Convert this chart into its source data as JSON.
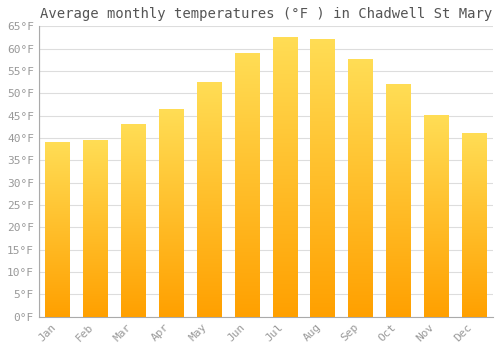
{
  "title": "Average monthly temperatures (°F ) in Chadwell St Mary",
  "months": [
    "Jan",
    "Feb",
    "Mar",
    "Apr",
    "May",
    "Jun",
    "Jul",
    "Aug",
    "Sep",
    "Oct",
    "Nov",
    "Dec"
  ],
  "values": [
    39,
    39.5,
    43,
    46.5,
    52.5,
    59,
    62.5,
    62,
    57.5,
    52,
    45,
    41
  ],
  "bar_color_top": "#FFDD55",
  "bar_color_bottom": "#FFA000",
  "background_color": "#FFFFFF",
  "grid_color": "#DDDDDD",
  "text_color": "#999999",
  "title_color": "#555555",
  "ylim": [
    0,
    65
  ],
  "ytick_step": 5,
  "title_fontsize": 10,
  "tick_fontsize": 8,
  "font_family": "monospace"
}
